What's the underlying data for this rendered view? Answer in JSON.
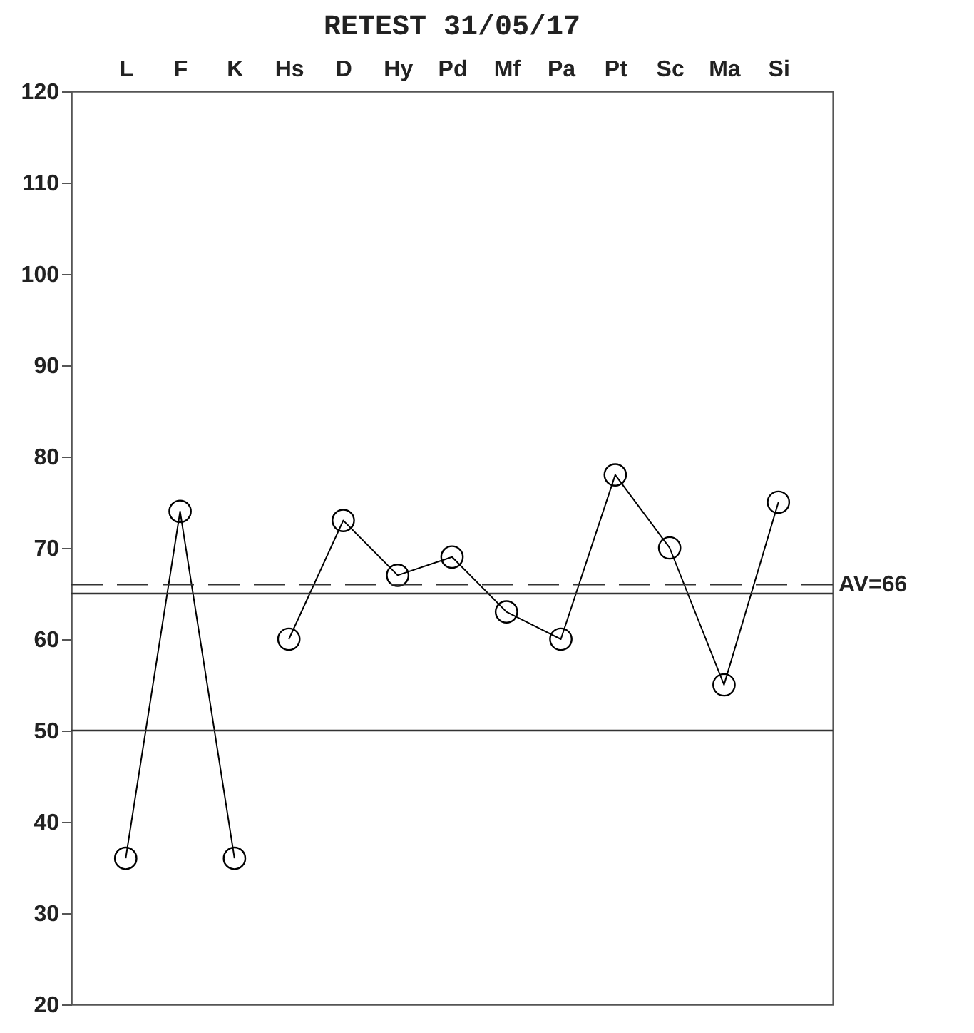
{
  "chart_data": {
    "type": "line",
    "title": "RETEST 31/05/17",
    "categories": [
      "L",
      "F",
      "K",
      "Hs",
      "D",
      "Hy",
      "Pd",
      "Mf",
      "Pa",
      "Pt",
      "Sc",
      "Ma",
      "Si"
    ],
    "series": [
      {
        "color": "#000000",
        "values": [
          36,
          74,
          36,
          null,
          null,
          null,
          null,
          null,
          null,
          null,
          null,
          null,
          null
        ]
      },
      {
        "color": "#000000",
        "values": [
          null,
          null,
          null,
          60,
          73,
          67,
          69,
          63,
          60,
          78,
          70,
          55,
          75
        ]
      }
    ],
    "ylim": [
      20,
      120
    ],
    "yticks": [
      20,
      30,
      40,
      50,
      60,
      70,
      80,
      90,
      100,
      110,
      120
    ],
    "ref_lines": [
      {
        "axis": "y",
        "value": 66,
        "label": "AV=66",
        "line_style": "dashed"
      },
      {
        "axis": "y",
        "value": 65,
        "line_style": "solid"
      },
      {
        "axis": "y",
        "value": 50,
        "line_style": "solid"
      }
    ],
    "marker": "circle",
    "grid": false,
    "legend": false
  }
}
